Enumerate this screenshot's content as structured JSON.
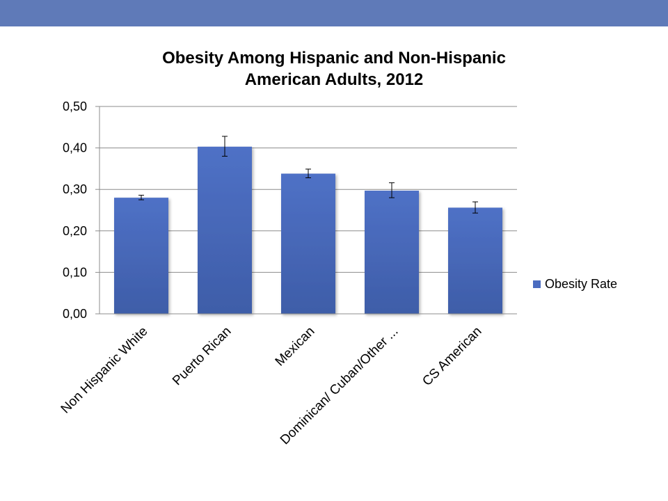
{
  "header": {
    "accent": "#5f7ab8"
  },
  "chart_data": {
    "type": "bar",
    "title_line1": "Obesity Among Hispanic and Non-Hispanic",
    "title_line2": "American Adults, 2012",
    "categories": [
      "Non Hispanic White",
      "Puerto Rican",
      "Mexican",
      "Dominican/ Cuban/Other ...",
      "CS American"
    ],
    "series": [
      {
        "name": "Obesity Rate",
        "values": [
          0.28,
          0.403,
          0.338,
          0.297,
          0.256
        ],
        "error_low": [
          0.275,
          0.38,
          0.328,
          0.28,
          0.243
        ],
        "error_high": [
          0.286,
          0.428,
          0.349,
          0.316,
          0.27
        ],
        "color": "#4b6cc0"
      }
    ],
    "yticks": [
      "0,00",
      "0,10",
      "0,20",
      "0,30",
      "0,40",
      "0,50"
    ],
    "ylim": [
      0,
      0.5
    ],
    "grid": true,
    "legend_position": "right"
  }
}
